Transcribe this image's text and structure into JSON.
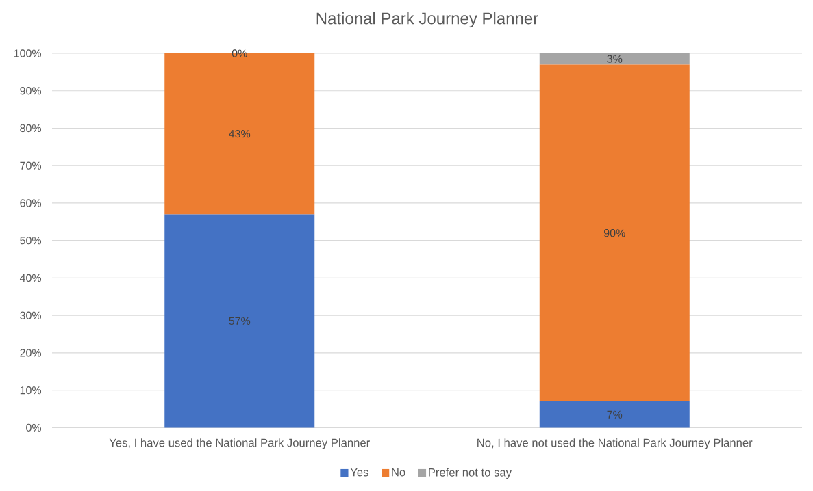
{
  "chart_data": {
    "type": "bar",
    "title": "National Park Journey Planner",
    "categories": [
      "Yes, I have used the National Park Journey Planner",
      "No, I have not used the National Park Journey Planner"
    ],
    "stacked": true,
    "series": [
      {
        "name": "Yes",
        "color": "#4472c4",
        "values": [
          57,
          7
        ],
        "value_labels": [
          "57%",
          "7%"
        ]
      },
      {
        "name": "No",
        "color": "#ed7d31",
        "values": [
          43,
          90
        ],
        "value_labels": [
          "43%",
          "90%"
        ]
      },
      {
        "name": "Prefer not to say",
        "color": "#a5a5a5",
        "values": [
          0,
          3
        ],
        "value_labels": [
          "0%",
          "3%"
        ]
      }
    ],
    "ylim": [
      0,
      100
    ],
    "yticks": [
      {
        "value": 0,
        "label": "0%"
      },
      {
        "value": 10,
        "label": "10%"
      },
      {
        "value": 20,
        "label": "20%"
      },
      {
        "value": 30,
        "label": "30%"
      },
      {
        "value": 40,
        "label": "40%"
      },
      {
        "value": 50,
        "label": "50%"
      },
      {
        "value": 60,
        "label": "60%"
      },
      {
        "value": 70,
        "label": "70%"
      },
      {
        "value": 80,
        "label": "80%"
      },
      {
        "value": 90,
        "label": "90%"
      },
      {
        "value": 100,
        "label": "100%"
      }
    ],
    "grid": "y",
    "legend": "bottom"
  }
}
